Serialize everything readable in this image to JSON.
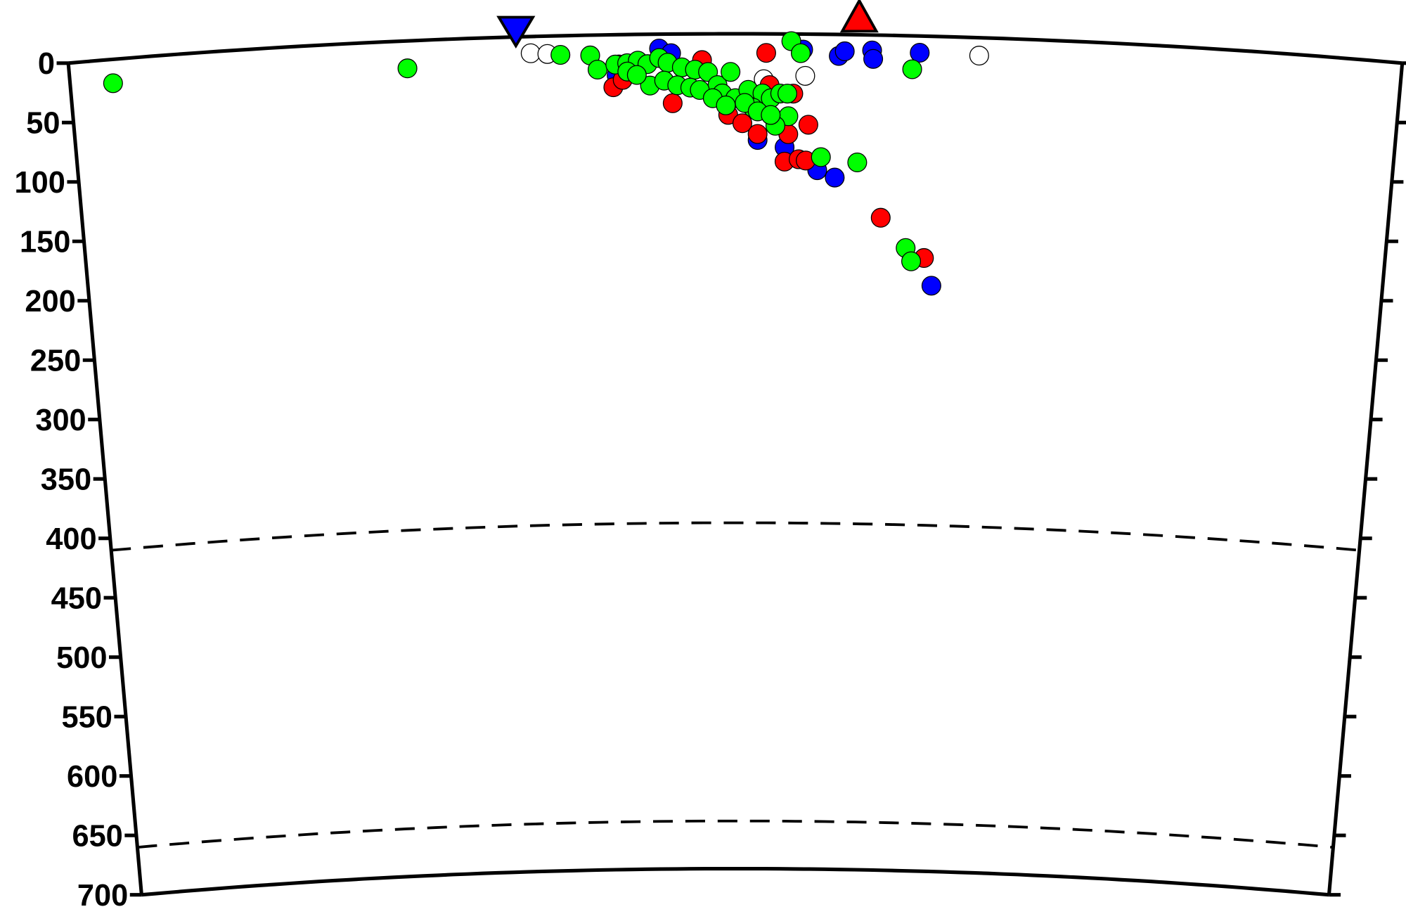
{
  "chart_data": {
    "type": "scatter",
    "title": "",
    "xlabel": "",
    "ylabel": "",
    "projection": "polar cross-section (depth)",
    "x_units": "km along profile from section center",
    "xlim": [
      -560,
      560
    ],
    "ylim": [
      0,
      700
    ],
    "y_inverted": true,
    "grid": false,
    "y_ticks": [
      0,
      50,
      100,
      150,
      200,
      250,
      300,
      350,
      400,
      450,
      500,
      550,
      600,
      650,
      700
    ],
    "y_tick_labels": [
      "0",
      "50",
      "100",
      "150",
      "200",
      "250",
      "300",
      "350",
      "400",
      "450",
      "500",
      "550",
      "600",
      "650",
      "700"
    ],
    "discontinuities_km": [
      410,
      660
    ],
    "markers": [
      {
        "shape": "inverted-triangle",
        "color": "#0000ff",
        "x": -184
      },
      {
        "shape": "triangle",
        "color": "#ff0000",
        "x": 104
      }
    ],
    "series": [
      {
        "color": "#ffffff",
        "points": [
          [
            -172,
            14
          ],
          [
            -158,
            15
          ],
          [
            24,
            38
          ],
          [
            59,
            35
          ],
          [
            205,
            15
          ]
        ]
      },
      {
        "color": "#0000ff",
        "points": [
          [
            -64,
            12
          ],
          [
            -54,
            16
          ],
          [
            57,
            13
          ],
          [
            87,
            18
          ],
          [
            92,
            14
          ],
          [
            115,
            13
          ],
          [
            116,
            20
          ],
          [
            155,
            14
          ],
          [
            19,
            89
          ],
          [
            42,
            95
          ],
          [
            70,
            114
          ],
          [
            85,
            120
          ],
          [
            170,
            209
          ],
          [
            -100,
            34
          ]
        ]
      },
      {
        "color": "#ff0000",
        "points": [
          [
            -103,
            44
          ],
          [
            -95,
            38
          ],
          [
            -53,
            58
          ],
          [
            -28,
            22
          ],
          [
            26,
            16
          ],
          [
            -6,
            68
          ],
          [
            6,
            75
          ],
          [
            19,
            84
          ],
          [
            29,
            43
          ],
          [
            49,
            50
          ],
          [
            42,
            107
          ],
          [
            54,
            105
          ],
          [
            60,
            106
          ],
          [
            62,
            76
          ],
          [
            125,
            153
          ],
          [
            163,
            186
          ],
          [
            -98,
            25
          ],
          [
            45,
            84
          ]
        ]
      },
      {
        "color": "#00ff00",
        "points": [
          [
            -524,
            20
          ],
          [
            -276,
            23
          ],
          [
            -147,
            16
          ],
          [
            -122,
            17
          ],
          [
            -116,
            29
          ],
          [
            -101,
            25
          ],
          [
            -91,
            24
          ],
          [
            -82,
            22
          ],
          [
            -74,
            25
          ],
          [
            -64,
            20
          ],
          [
            -57,
            24
          ],
          [
            -45,
            28
          ],
          [
            -34,
            30
          ],
          [
            -23,
            32
          ],
          [
            -15,
            43
          ],
          [
            -4,
            32
          ],
          [
            -11,
            50
          ],
          [
            0,
            54
          ],
          [
            11,
            47
          ],
          [
            23,
            50
          ],
          [
            30,
            54
          ],
          [
            38,
            50
          ],
          [
            44,
            50
          ],
          [
            45,
            69
          ],
          [
            34,
            77
          ],
          [
            15,
            62
          ],
          [
            -72,
            43
          ],
          [
            -60,
            39
          ],
          [
            -49,
            43
          ],
          [
            -38,
            45
          ],
          [
            -30,
            47
          ],
          [
            -19,
            54
          ],
          [
            -8,
            60
          ],
          [
            8,
            58
          ],
          [
            19,
            65
          ],
          [
            30,
            68
          ],
          [
            47,
            6
          ],
          [
            55,
            16
          ],
          [
            73,
            103
          ],
          [
            104,
            107
          ],
          [
            149,
            28
          ],
          [
            147,
            178
          ],
          [
            152,
            189
          ],
          [
            -91,
            31
          ],
          [
            -83,
            34
          ]
        ]
      }
    ]
  }
}
